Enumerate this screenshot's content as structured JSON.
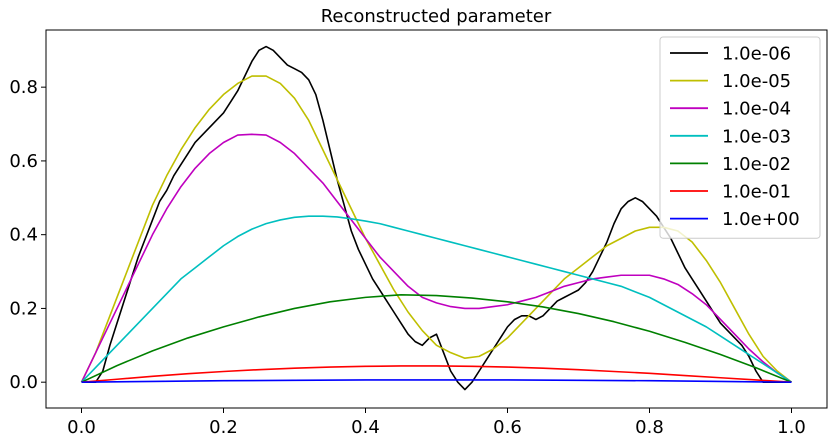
{
  "chart_data": {
    "type": "line",
    "title": "Reconstructed parameter",
    "xlabel": "",
    "ylabel": "",
    "xlim": [
      -0.05,
      1.05
    ],
    "ylim": [
      -0.07,
      0.955
    ],
    "xticks": [
      0.0,
      0.2,
      0.4,
      0.6,
      0.8,
      1.0
    ],
    "xtick_labels": [
      "0.0",
      "0.2",
      "0.4",
      "0.6",
      "0.8",
      "1.0"
    ],
    "yticks": [
      0.0,
      0.2,
      0.4,
      0.6,
      0.8
    ],
    "ytick_labels": [
      "0.0",
      "0.2",
      "0.4",
      "0.6",
      "0.8"
    ],
    "grid": false,
    "legend_position": "top-right",
    "series": [
      {
        "name": "1.0e-06",
        "color": "#000000",
        "x": [
          0.0,
          0.01,
          0.02,
          0.03,
          0.04,
          0.05,
          0.06,
          0.07,
          0.08,
          0.09,
          0.1,
          0.11,
          0.12,
          0.13,
          0.14,
          0.15,
          0.16,
          0.17,
          0.18,
          0.19,
          0.2,
          0.21,
          0.22,
          0.23,
          0.24,
          0.25,
          0.26,
          0.27,
          0.28,
          0.29,
          0.3,
          0.31,
          0.32,
          0.33,
          0.34,
          0.35,
          0.36,
          0.37,
          0.38,
          0.39,
          0.4,
          0.41,
          0.42,
          0.43,
          0.44,
          0.45,
          0.46,
          0.47,
          0.48,
          0.49,
          0.5,
          0.51,
          0.52,
          0.53,
          0.54,
          0.55,
          0.56,
          0.57,
          0.58,
          0.59,
          0.6,
          0.61,
          0.62,
          0.63,
          0.64,
          0.65,
          0.66,
          0.67,
          0.68,
          0.69,
          0.7,
          0.71,
          0.72,
          0.73,
          0.74,
          0.75,
          0.76,
          0.77,
          0.78,
          0.79,
          0.8,
          0.81,
          0.82,
          0.83,
          0.84,
          0.85,
          0.86,
          0.87,
          0.88,
          0.89,
          0.9,
          0.91,
          0.92,
          0.93,
          0.94,
          0.95,
          0.96,
          0.97,
          0.98,
          0.99,
          1.0
        ],
        "y": [
          0.0,
          0.0,
          0.0,
          0.03,
          0.1,
          0.16,
          0.22,
          0.28,
          0.34,
          0.39,
          0.44,
          0.49,
          0.52,
          0.56,
          0.59,
          0.62,
          0.65,
          0.67,
          0.69,
          0.71,
          0.73,
          0.76,
          0.79,
          0.83,
          0.87,
          0.9,
          0.91,
          0.9,
          0.88,
          0.86,
          0.85,
          0.84,
          0.82,
          0.78,
          0.71,
          0.63,
          0.55,
          0.48,
          0.41,
          0.36,
          0.32,
          0.28,
          0.25,
          0.22,
          0.19,
          0.16,
          0.13,
          0.11,
          0.1,
          0.12,
          0.13,
          0.08,
          0.03,
          0.0,
          -0.02,
          0.0,
          0.03,
          0.06,
          0.09,
          0.12,
          0.15,
          0.17,
          0.18,
          0.18,
          0.17,
          0.18,
          0.2,
          0.22,
          0.23,
          0.24,
          0.25,
          0.27,
          0.3,
          0.34,
          0.38,
          0.43,
          0.47,
          0.49,
          0.5,
          0.49,
          0.47,
          0.45,
          0.42,
          0.39,
          0.35,
          0.31,
          0.28,
          0.25,
          0.22,
          0.19,
          0.16,
          0.14,
          0.12,
          0.1,
          0.07,
          0.03,
          0.0,
          0.0,
          0.0,
          0.0,
          0.0
        ]
      },
      {
        "name": "1.0e-05",
        "color": "#bfbf00",
        "x": [
          0.0,
          0.02,
          0.04,
          0.06,
          0.08,
          0.1,
          0.12,
          0.14,
          0.16,
          0.18,
          0.2,
          0.22,
          0.24,
          0.26,
          0.28,
          0.3,
          0.32,
          0.34,
          0.36,
          0.38,
          0.4,
          0.42,
          0.44,
          0.46,
          0.48,
          0.5,
          0.52,
          0.54,
          0.56,
          0.58,
          0.6,
          0.62,
          0.64,
          0.66,
          0.68,
          0.7,
          0.72,
          0.74,
          0.76,
          0.78,
          0.8,
          0.82,
          0.84,
          0.86,
          0.88,
          0.9,
          0.92,
          0.94,
          0.96,
          0.98,
          1.0
        ],
        "y": [
          0.0,
          0.08,
          0.18,
          0.28,
          0.38,
          0.48,
          0.56,
          0.63,
          0.69,
          0.74,
          0.78,
          0.81,
          0.83,
          0.83,
          0.81,
          0.77,
          0.71,
          0.63,
          0.55,
          0.47,
          0.39,
          0.32,
          0.25,
          0.19,
          0.14,
          0.1,
          0.08,
          0.065,
          0.07,
          0.09,
          0.12,
          0.16,
          0.2,
          0.24,
          0.28,
          0.31,
          0.34,
          0.37,
          0.39,
          0.41,
          0.42,
          0.42,
          0.41,
          0.38,
          0.33,
          0.27,
          0.2,
          0.13,
          0.07,
          0.03,
          0.0
        ]
      },
      {
        "name": "1.0e-04",
        "color": "#bf00bf",
        "x": [
          0.0,
          0.02,
          0.04,
          0.06,
          0.08,
          0.1,
          0.12,
          0.14,
          0.16,
          0.18,
          0.2,
          0.22,
          0.24,
          0.26,
          0.28,
          0.3,
          0.32,
          0.34,
          0.36,
          0.38,
          0.4,
          0.42,
          0.44,
          0.46,
          0.48,
          0.5,
          0.52,
          0.54,
          0.56,
          0.58,
          0.6,
          0.62,
          0.64,
          0.66,
          0.68,
          0.7,
          0.72,
          0.74,
          0.76,
          0.78,
          0.8,
          0.82,
          0.84,
          0.86,
          0.88,
          0.9,
          0.92,
          0.94,
          0.96,
          0.98,
          1.0
        ],
        "y": [
          0.0,
          0.08,
          0.16,
          0.24,
          0.32,
          0.4,
          0.47,
          0.53,
          0.58,
          0.62,
          0.65,
          0.67,
          0.672,
          0.67,
          0.65,
          0.62,
          0.58,
          0.54,
          0.49,
          0.44,
          0.39,
          0.34,
          0.3,
          0.26,
          0.23,
          0.215,
          0.205,
          0.2,
          0.2,
          0.205,
          0.21,
          0.22,
          0.23,
          0.245,
          0.26,
          0.27,
          0.28,
          0.285,
          0.29,
          0.29,
          0.29,
          0.28,
          0.265,
          0.24,
          0.21,
          0.17,
          0.13,
          0.09,
          0.055,
          0.025,
          0.0
        ]
      },
      {
        "name": "1.0e-03",
        "color": "#00bfbf",
        "x": [
          0.0,
          0.02,
          0.04,
          0.06,
          0.08,
          0.1,
          0.12,
          0.14,
          0.16,
          0.18,
          0.2,
          0.22,
          0.24,
          0.26,
          0.28,
          0.3,
          0.32,
          0.34,
          0.36,
          0.38,
          0.4,
          0.42,
          0.44,
          0.46,
          0.48,
          0.5,
          0.52,
          0.54,
          0.56,
          0.58,
          0.6,
          0.62,
          0.64,
          0.66,
          0.68,
          0.7,
          0.72,
          0.74,
          0.76,
          0.78,
          0.8,
          0.82,
          0.84,
          0.86,
          0.88,
          0.9,
          0.92,
          0.94,
          0.96,
          0.98,
          1.0
        ],
        "y": [
          0.0,
          0.04,
          0.08,
          0.12,
          0.16,
          0.2,
          0.24,
          0.28,
          0.31,
          0.34,
          0.37,
          0.395,
          0.415,
          0.43,
          0.44,
          0.447,
          0.45,
          0.45,
          0.448,
          0.443,
          0.437,
          0.43,
          0.42,
          0.41,
          0.4,
          0.39,
          0.38,
          0.37,
          0.36,
          0.35,
          0.34,
          0.33,
          0.32,
          0.31,
          0.3,
          0.29,
          0.28,
          0.27,
          0.26,
          0.245,
          0.23,
          0.21,
          0.19,
          0.17,
          0.15,
          0.125,
          0.1,
          0.075,
          0.05,
          0.025,
          0.0
        ]
      },
      {
        "name": "1.0e-02",
        "color": "#008000",
        "x": [
          0.0,
          0.05,
          0.1,
          0.15,
          0.2,
          0.25,
          0.3,
          0.35,
          0.4,
          0.45,
          0.5,
          0.55,
          0.6,
          0.65,
          0.7,
          0.75,
          0.8,
          0.85,
          0.9,
          0.95,
          1.0
        ],
        "y": [
          0.0,
          0.045,
          0.085,
          0.12,
          0.15,
          0.177,
          0.2,
          0.218,
          0.23,
          0.237,
          0.235,
          0.228,
          0.218,
          0.204,
          0.186,
          0.164,
          0.138,
          0.108,
          0.075,
          0.039,
          0.0
        ]
      },
      {
        "name": "1.0e-01",
        "color": "#ff0000",
        "x": [
          0.0,
          0.05,
          0.1,
          0.15,
          0.2,
          0.25,
          0.3,
          0.35,
          0.4,
          0.45,
          0.5,
          0.55,
          0.6,
          0.65,
          0.7,
          0.75,
          0.8,
          0.85,
          0.9,
          0.95,
          1.0
        ],
        "y": [
          0.0,
          0.008,
          0.016,
          0.023,
          0.029,
          0.034,
          0.038,
          0.041,
          0.043,
          0.044,
          0.044,
          0.043,
          0.041,
          0.038,
          0.034,
          0.029,
          0.024,
          0.018,
          0.012,
          0.006,
          0.0
        ]
      },
      {
        "name": "1.0e+00",
        "color": "#0000ff",
        "x": [
          0.0,
          0.1,
          0.2,
          0.3,
          0.4,
          0.5,
          0.6,
          0.7,
          0.8,
          0.9,
          1.0
        ],
        "y": [
          0.0,
          0.002,
          0.004,
          0.005,
          0.006,
          0.006,
          0.006,
          0.005,
          0.004,
          0.002,
          0.0
        ]
      }
    ]
  }
}
